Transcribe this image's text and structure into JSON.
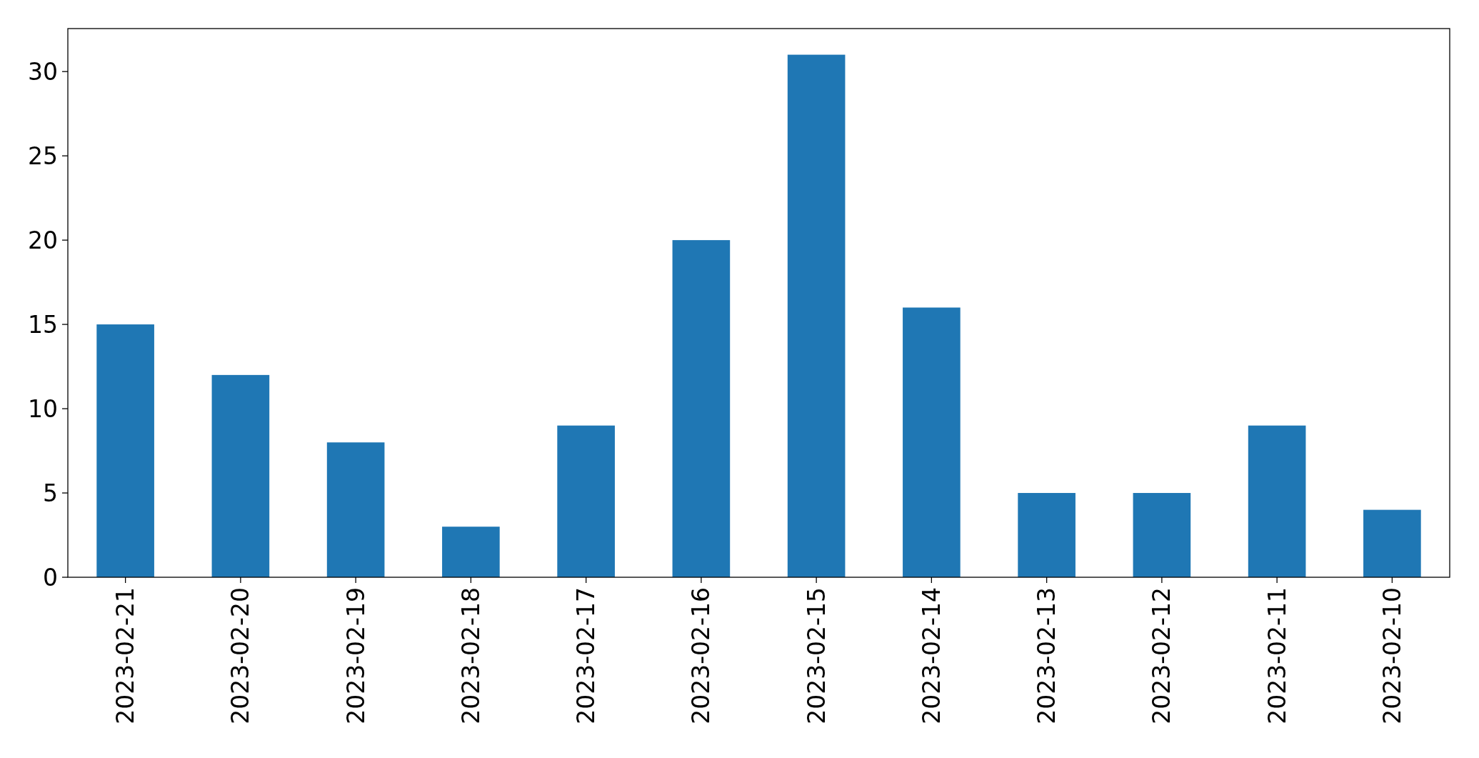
{
  "chart_data": {
    "type": "bar",
    "categories": [
      "2023-02-21",
      "2023-02-20",
      "2023-02-19",
      "2023-02-18",
      "2023-02-17",
      "2023-02-16",
      "2023-02-15",
      "2023-02-14",
      "2023-02-13",
      "2023-02-12",
      "2023-02-11",
      "2023-02-10"
    ],
    "values": [
      15,
      12,
      8,
      3,
      9,
      20,
      31,
      16,
      5,
      5,
      9,
      4
    ],
    "color": "#1f77b4",
    "ylim": [
      0,
      32.55
    ],
    "yticks": [
      0,
      5,
      10,
      15,
      20,
      25,
      30
    ]
  }
}
